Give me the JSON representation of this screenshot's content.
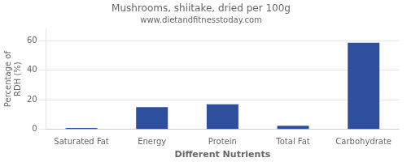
{
  "chart_data": {
    "type": "bar",
    "title": "Mushrooms, shiitake, dried per 100g",
    "subtitle": "www.dietandfitnesstoday.com",
    "xlabel": "Different Nutrients",
    "ylabel": "Percentage of\nRDH (%)",
    "categories": [
      "Saturated Fat",
      "Energy",
      "Protein",
      "Total Fat",
      "Carbohydrate"
    ],
    "values": [
      1,
      15,
      17,
      2.5,
      58.5
    ],
    "color": "#2e4f9e",
    "ylim": [
      0,
      68
    ],
    "yticks": [
      0,
      20,
      40,
      60
    ],
    "grid": true
  }
}
